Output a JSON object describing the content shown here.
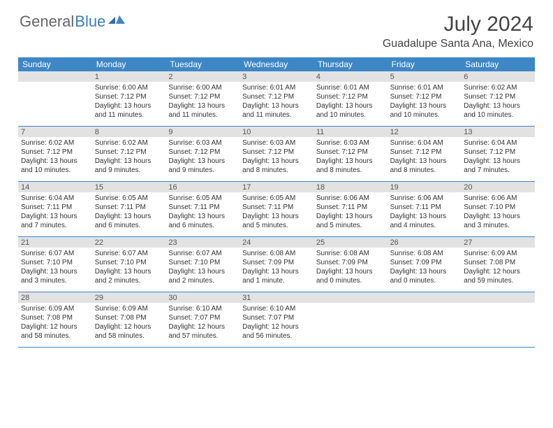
{
  "logo": {
    "text1": "General",
    "text2": "Blue"
  },
  "title": "July 2024",
  "location": "Guadalupe Santa Ana, Mexico",
  "colors": {
    "header_bg": "#3d87c7",
    "header_text": "#ffffff",
    "daynum_bg": "#e2e2e2",
    "week_border": "#3d87c7",
    "logo_blue": "#3a7cbf",
    "body_text": "#333333"
  },
  "dayNames": [
    "Sunday",
    "Monday",
    "Tuesday",
    "Wednesday",
    "Thursday",
    "Friday",
    "Saturday"
  ],
  "weeks": [
    [
      {
        "n": "",
        "lines": []
      },
      {
        "n": "1",
        "lines": [
          "Sunrise: 6:00 AM",
          "Sunset: 7:12 PM",
          "Daylight: 13 hours",
          "and 11 minutes."
        ]
      },
      {
        "n": "2",
        "lines": [
          "Sunrise: 6:00 AM",
          "Sunset: 7:12 PM",
          "Daylight: 13 hours",
          "and 11 minutes."
        ]
      },
      {
        "n": "3",
        "lines": [
          "Sunrise: 6:01 AM",
          "Sunset: 7:12 PM",
          "Daylight: 13 hours",
          "and 11 minutes."
        ]
      },
      {
        "n": "4",
        "lines": [
          "Sunrise: 6:01 AM",
          "Sunset: 7:12 PM",
          "Daylight: 13 hours",
          "and 10 minutes."
        ]
      },
      {
        "n": "5",
        "lines": [
          "Sunrise: 6:01 AM",
          "Sunset: 7:12 PM",
          "Daylight: 13 hours",
          "and 10 minutes."
        ]
      },
      {
        "n": "6",
        "lines": [
          "Sunrise: 6:02 AM",
          "Sunset: 7:12 PM",
          "Daylight: 13 hours",
          "and 10 minutes."
        ]
      }
    ],
    [
      {
        "n": "7",
        "lines": [
          "Sunrise: 6:02 AM",
          "Sunset: 7:12 PM",
          "Daylight: 13 hours",
          "and 10 minutes."
        ]
      },
      {
        "n": "8",
        "lines": [
          "Sunrise: 6:02 AM",
          "Sunset: 7:12 PM",
          "Daylight: 13 hours",
          "and 9 minutes."
        ]
      },
      {
        "n": "9",
        "lines": [
          "Sunrise: 6:03 AM",
          "Sunset: 7:12 PM",
          "Daylight: 13 hours",
          "and 9 minutes."
        ]
      },
      {
        "n": "10",
        "lines": [
          "Sunrise: 6:03 AM",
          "Sunset: 7:12 PM",
          "Daylight: 13 hours",
          "and 8 minutes."
        ]
      },
      {
        "n": "11",
        "lines": [
          "Sunrise: 6:03 AM",
          "Sunset: 7:12 PM",
          "Daylight: 13 hours",
          "and 8 minutes."
        ]
      },
      {
        "n": "12",
        "lines": [
          "Sunrise: 6:04 AM",
          "Sunset: 7:12 PM",
          "Daylight: 13 hours",
          "and 8 minutes."
        ]
      },
      {
        "n": "13",
        "lines": [
          "Sunrise: 6:04 AM",
          "Sunset: 7:12 PM",
          "Daylight: 13 hours",
          "and 7 minutes."
        ]
      }
    ],
    [
      {
        "n": "14",
        "lines": [
          "Sunrise: 6:04 AM",
          "Sunset: 7:11 PM",
          "Daylight: 13 hours",
          "and 7 minutes."
        ]
      },
      {
        "n": "15",
        "lines": [
          "Sunrise: 6:05 AM",
          "Sunset: 7:11 PM",
          "Daylight: 13 hours",
          "and 6 minutes."
        ]
      },
      {
        "n": "16",
        "lines": [
          "Sunrise: 6:05 AM",
          "Sunset: 7:11 PM",
          "Daylight: 13 hours",
          "and 6 minutes."
        ]
      },
      {
        "n": "17",
        "lines": [
          "Sunrise: 6:05 AM",
          "Sunset: 7:11 PM",
          "Daylight: 13 hours",
          "and 5 minutes."
        ]
      },
      {
        "n": "18",
        "lines": [
          "Sunrise: 6:06 AM",
          "Sunset: 7:11 PM",
          "Daylight: 13 hours",
          "and 5 minutes."
        ]
      },
      {
        "n": "19",
        "lines": [
          "Sunrise: 6:06 AM",
          "Sunset: 7:11 PM",
          "Daylight: 13 hours",
          "and 4 minutes."
        ]
      },
      {
        "n": "20",
        "lines": [
          "Sunrise: 6:06 AM",
          "Sunset: 7:10 PM",
          "Daylight: 13 hours",
          "and 3 minutes."
        ]
      }
    ],
    [
      {
        "n": "21",
        "lines": [
          "Sunrise: 6:07 AM",
          "Sunset: 7:10 PM",
          "Daylight: 13 hours",
          "and 3 minutes."
        ]
      },
      {
        "n": "22",
        "lines": [
          "Sunrise: 6:07 AM",
          "Sunset: 7:10 PM",
          "Daylight: 13 hours",
          "and 2 minutes."
        ]
      },
      {
        "n": "23",
        "lines": [
          "Sunrise: 6:07 AM",
          "Sunset: 7:10 PM",
          "Daylight: 13 hours",
          "and 2 minutes."
        ]
      },
      {
        "n": "24",
        "lines": [
          "Sunrise: 6:08 AM",
          "Sunset: 7:09 PM",
          "Daylight: 13 hours",
          "and 1 minute."
        ]
      },
      {
        "n": "25",
        "lines": [
          "Sunrise: 6:08 AM",
          "Sunset: 7:09 PM",
          "Daylight: 13 hours",
          "and 0 minutes."
        ]
      },
      {
        "n": "26",
        "lines": [
          "Sunrise: 6:08 AM",
          "Sunset: 7:09 PM",
          "Daylight: 13 hours",
          "and 0 minutes."
        ]
      },
      {
        "n": "27",
        "lines": [
          "Sunrise: 6:09 AM",
          "Sunset: 7:08 PM",
          "Daylight: 12 hours",
          "and 59 minutes."
        ]
      }
    ],
    [
      {
        "n": "28",
        "lines": [
          "Sunrise: 6:09 AM",
          "Sunset: 7:08 PM",
          "Daylight: 12 hours",
          "and 58 minutes."
        ]
      },
      {
        "n": "29",
        "lines": [
          "Sunrise: 6:09 AM",
          "Sunset: 7:08 PM",
          "Daylight: 12 hours",
          "and 58 minutes."
        ]
      },
      {
        "n": "30",
        "lines": [
          "Sunrise: 6:10 AM",
          "Sunset: 7:07 PM",
          "Daylight: 12 hours",
          "and 57 minutes."
        ]
      },
      {
        "n": "31",
        "lines": [
          "Sunrise: 6:10 AM",
          "Sunset: 7:07 PM",
          "Daylight: 12 hours",
          "and 56 minutes."
        ]
      },
      {
        "n": "",
        "lines": []
      },
      {
        "n": "",
        "lines": []
      },
      {
        "n": "",
        "lines": []
      }
    ]
  ]
}
